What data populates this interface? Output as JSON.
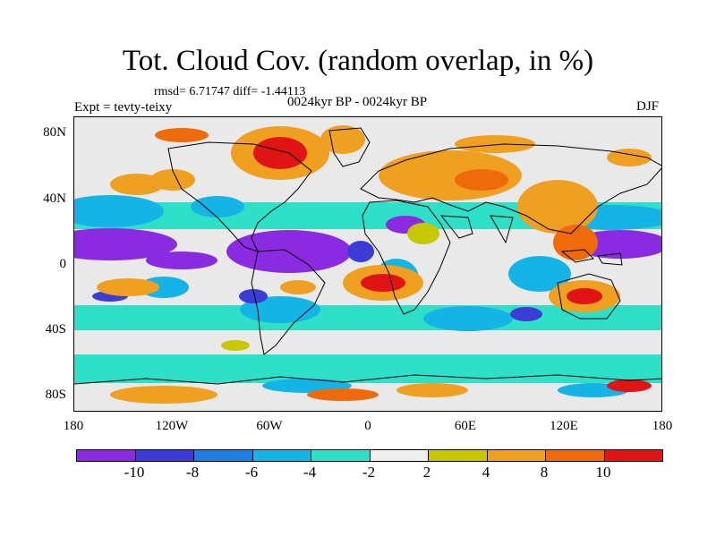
{
  "title": "Tot. Cloud Cov. (random overlap, in %)",
  "stats": "rmsd= 6.71747 diff= -1.44113",
  "period": "0024kyr BP - 0024kyr BP",
  "experiment": "Expt = tevty-teixy",
  "season": "DJF",
  "map": {
    "lat_ticks": [
      "80N",
      "40N",
      "0",
      "40S",
      "80S"
    ],
    "lon_ticks": [
      "180",
      "120W",
      "60W",
      "0",
      "60E",
      "120E",
      "180"
    ]
  },
  "colorbar": {
    "labels": [
      "-10",
      "-8",
      "-6",
      "-4",
      "-2",
      "2",
      "4",
      "8",
      "10"
    ],
    "colors": [
      "#8a2be2",
      "#3c3cd6",
      "#1f7fe0",
      "#14b4e6",
      "#2fe0c8",
      "#eeeeee",
      "#c8c800",
      "#f0a020",
      "#ee6a0a",
      "#e01414"
    ]
  }
}
